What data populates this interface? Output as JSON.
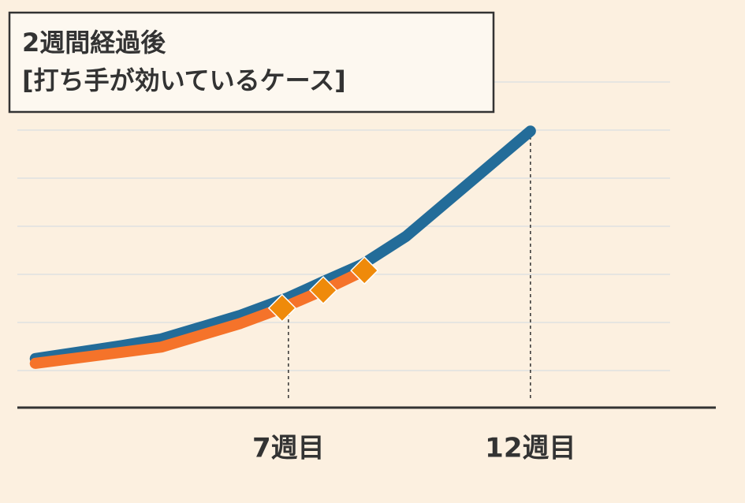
{
  "chart_data": {
    "type": "line",
    "title": "2週間経過後",
    "subtitle": "[打ち手が効いているケース]",
    "xlim": [
      1.4,
      15.83
    ],
    "xticks": [
      {
        "value": 7,
        "label": "7週目"
      },
      {
        "value": 12,
        "label": "12週目"
      }
    ],
    "ylim": [
      0.23,
      8
    ],
    "yticks": [
      1,
      2,
      3,
      4,
      5,
      6,
      7
    ],
    "grid": true,
    "series": [
      {
        "color": "#236c99",
        "marker": "none",
        "x": [
          1.77,
          3.56,
          4.38,
          6.01,
          7,
          7.72,
          8.53,
          9.43,
          12
        ],
        "values": [
          1.25,
          1.52,
          1.66,
          2.15,
          2.52,
          2.85,
          3.21,
          3.79,
          5.98
        ]
      },
      {
        "color": "#f5732a",
        "marker": "none",
        "x": [
          1.77,
          3.56,
          4.38,
          6.01,
          6.87,
          7.72,
          8.57
        ],
        "values": [
          1.15,
          1.38,
          1.49,
          1.98,
          2.3,
          2.67,
          3.08
        ]
      },
      {
        "color": "#ef8a0a",
        "marker": "diamond",
        "x": [
          6.87,
          7.72,
          8.57
        ],
        "values": [
          2.3,
          2.67,
          3.08
        ]
      }
    ]
  }
}
